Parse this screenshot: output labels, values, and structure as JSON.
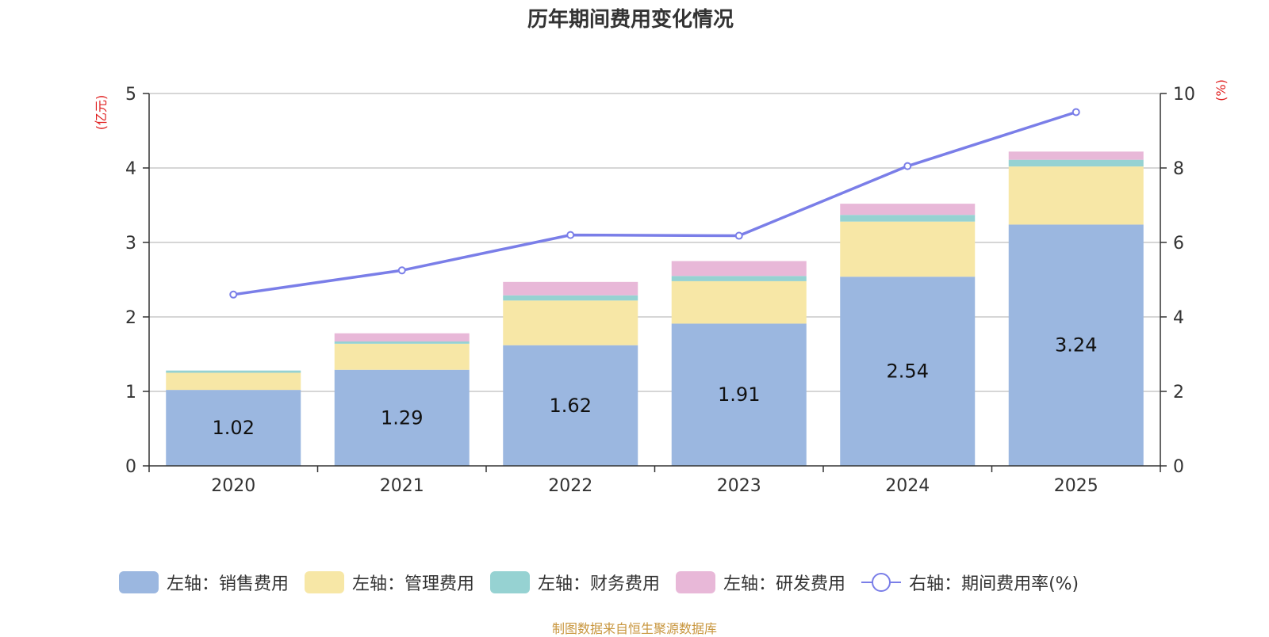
{
  "chart_data": {
    "type": "bar",
    "title": "历年期间费用变化情况",
    "categories": [
      "2020",
      "2021",
      "2022",
      "2023",
      "2024",
      "2025"
    ],
    "left_axis": {
      "unit": "(亿元)",
      "ylim": [
        0,
        5
      ],
      "ticks": [
        "0",
        "1",
        "2",
        "3",
        "4",
        "5"
      ]
    },
    "right_axis": {
      "unit": "(%)",
      "ylim": [
        0,
        10
      ],
      "ticks": [
        "0",
        "2",
        "4",
        "6",
        "8",
        "10"
      ]
    },
    "series": [
      {
        "name": "左轴：销售费用",
        "type": "bar",
        "axis": "left",
        "color": "#9bb7e0",
        "values": [
          1.02,
          1.29,
          1.62,
          1.91,
          2.54,
          3.24
        ],
        "labels": [
          "1.02",
          "1.29",
          "1.62",
          "1.91",
          "2.54",
          "3.24"
        ]
      },
      {
        "name": "左轴：管理费用",
        "type": "bar",
        "axis": "left",
        "color": "#f7e7a6",
        "values": [
          0.23,
          0.35,
          0.6,
          0.57,
          0.74,
          0.78
        ]
      },
      {
        "name": "左轴：财务费用",
        "type": "bar",
        "axis": "left",
        "color": "#96d2d2",
        "values": [
          0.03,
          0.03,
          0.07,
          0.07,
          0.09,
          0.09
        ]
      },
      {
        "name": "左轴：研发费用",
        "type": "bar",
        "axis": "left",
        "color": "#e8b8d8",
        "values": [
          0.0,
          0.11,
          0.18,
          0.2,
          0.15,
          0.11
        ]
      },
      {
        "name": "右轴：期间费用率(%)",
        "type": "line",
        "axis": "right",
        "color": "#7a7ee8",
        "values": [
          4.6,
          5.25,
          6.2,
          6.18,
          8.05,
          9.5
        ]
      }
    ]
  },
  "footer": "制图数据来自恒生聚源数据库"
}
